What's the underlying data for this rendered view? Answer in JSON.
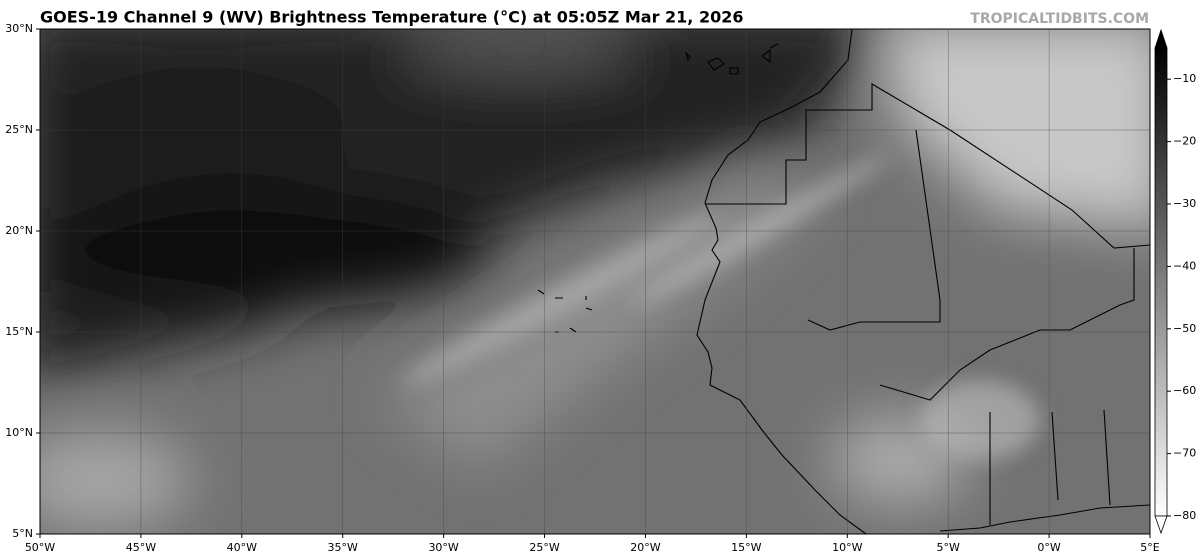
{
  "title": "GOES-19 Channel 9 (WV) Brightness Temperature (°C) at 05:05Z Mar 21, 2026",
  "watermark": "TROPICALTIDBITS.COM",
  "map": {
    "xlim": [
      -50,
      5
    ],
    "ylim": [
      5,
      30
    ],
    "xticks": [
      {
        "value": -50,
        "label": "50°W"
      },
      {
        "value": -45,
        "label": "45°W"
      },
      {
        "value": -40,
        "label": "40°W"
      },
      {
        "value": -35,
        "label": "35°W"
      },
      {
        "value": -30,
        "label": "30°W"
      },
      {
        "value": -25,
        "label": "25°W"
      },
      {
        "value": -20,
        "label": "20°W"
      },
      {
        "value": -15,
        "label": "15°W"
      },
      {
        "value": -10,
        "label": "10°W"
      },
      {
        "value": -5,
        "label": "5°W"
      },
      {
        "value": 0,
        "label": "0°W"
      },
      {
        "value": 5,
        "label": "5°E"
      }
    ],
    "yticks": [
      {
        "value": 5,
        "label": "5°N"
      },
      {
        "value": 10,
        "label": "10°N"
      },
      {
        "value": 15,
        "label": "15°N"
      },
      {
        "value": 20,
        "label": "20°N"
      },
      {
        "value": 25,
        "label": "25°N"
      },
      {
        "value": 30,
        "label": "30°N"
      }
    ],
    "grid": true
  },
  "colorbar": {
    "lim": [
      -80,
      -5
    ],
    "ticks": [
      {
        "value": -10,
        "label": "−10"
      },
      {
        "value": -20,
        "label": "−20"
      },
      {
        "value": -30,
        "label": "−30"
      },
      {
        "value": -40,
        "label": "−40"
      },
      {
        "value": -50,
        "label": "−50"
      },
      {
        "value": -60,
        "label": "−60"
      },
      {
        "value": -70,
        "label": "−70"
      },
      {
        "value": -80,
        "label": "−80"
      }
    ]
  }
}
